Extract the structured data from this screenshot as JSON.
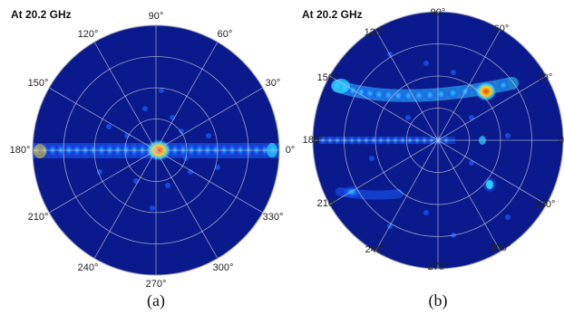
{
  "figure": {
    "panels": [
      {
        "id": "a",
        "title": "At 20.2 GHz",
        "caption": "(a)",
        "angle_labels": {
          "0": "0°",
          "30": "30°",
          "60": "60°",
          "90": "90°",
          "120": "120°",
          "150": "150°",
          "180": "180°",
          "210": "210°",
          "240": "240°",
          "270": "270°",
          "300": "300°",
          "330": "330°"
        }
      },
      {
        "id": "b",
        "title": "At 20.2 GHz",
        "caption": "(b)",
        "angle_labels": {
          "0": "0",
          "30": "30°",
          "60": "60°",
          "90": "90°",
          "120": "120°",
          "150": "150°",
          "180": "180°",
          "210": "210°",
          "240": "240°",
          "270": "270°",
          "300": "300°",
          "330": "330°"
        }
      }
    ],
    "colors": {
      "background": "#0a1a8c",
      "grid": "#c8c8d8",
      "hot": "#ff2a00",
      "warm": "#ffd21e",
      "mid": "#2fd6ff",
      "low": "#1a5cff"
    }
  }
}
